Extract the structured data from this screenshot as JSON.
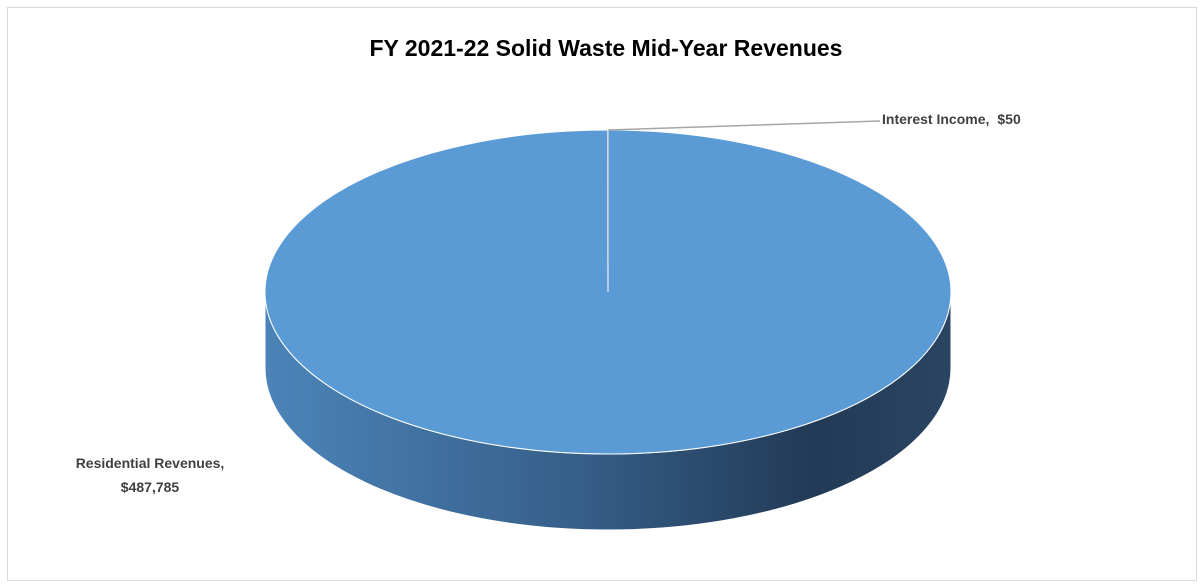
{
  "chart_data": {
    "type": "pie",
    "title": "FY 2021-22 Solid Waste Mid-Year Revenues",
    "categories": [
      "Residential Revenues",
      "Interest Income"
    ],
    "values": [
      487785,
      50
    ],
    "value_labels": [
      "$487,785",
      "$50"
    ],
    "label_separator": ",",
    "colors": [
      "#5b9bd5",
      "#5b9bd5"
    ]
  }
}
